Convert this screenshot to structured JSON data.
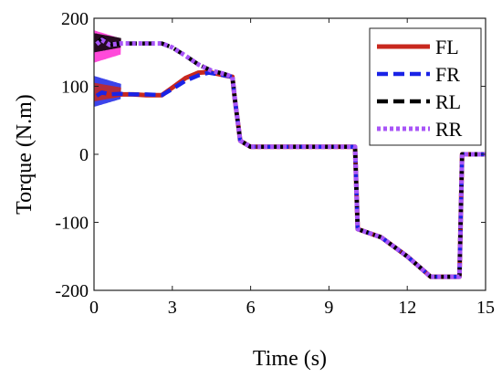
{
  "chart_data": {
    "type": "line",
    "title": "",
    "xlabel": "Time (s)",
    "ylabel": "Torque (N.m)",
    "xlim": [
      0,
      15
    ],
    "ylim": [
      -200,
      200
    ],
    "xticks": [
      0,
      3,
      6,
      9,
      12,
      15
    ],
    "yticks": [
      -200,
      -100,
      0,
      100,
      200
    ],
    "xtick_labels": [
      "0",
      "3",
      "6",
      "9",
      "12",
      "15"
    ],
    "ytick_labels": [
      "-200",
      "-100",
      "0",
      "100",
      "200"
    ],
    "grid": false,
    "legend_position": "top-right",
    "series": [
      {
        "name": "FL",
        "color": "#c8281e",
        "style": "solid",
        "points": [
          [
            0.1,
            85
          ],
          [
            0.3,
            92
          ],
          [
            0.6,
            86
          ],
          [
            1.0,
            88
          ],
          [
            1.5,
            88
          ],
          [
            2.0,
            87
          ],
          [
            2.6,
            87
          ],
          [
            3.0,
            98
          ],
          [
            3.5,
            112
          ],
          [
            4.0,
            120
          ],
          [
            4.4,
            121
          ],
          [
            5.0,
            116
          ],
          [
            5.3,
            114
          ],
          [
            5.4,
            80
          ],
          [
            5.6,
            20
          ],
          [
            6.0,
            11
          ],
          [
            9.0,
            11
          ],
          [
            10.0,
            11
          ],
          [
            10.1,
            -110
          ],
          [
            11.0,
            -122
          ],
          [
            12.0,
            -150
          ],
          [
            12.9,
            -180
          ],
          [
            13.9,
            -180
          ],
          [
            14.0,
            -180
          ],
          [
            14.1,
            0
          ],
          [
            15.0,
            0
          ]
        ]
      },
      {
        "name": "FR",
        "color": "#1a23e6",
        "style": "dashed",
        "points": [
          [
            0.1,
            86
          ],
          [
            0.3,
            91
          ],
          [
            0.6,
            88
          ],
          [
            1.0,
            89
          ],
          [
            1.5,
            88
          ],
          [
            2.0,
            88
          ],
          [
            2.6,
            87
          ],
          [
            3.0,
            96
          ],
          [
            3.5,
            108
          ],
          [
            4.0,
            116
          ],
          [
            4.4,
            120
          ],
          [
            5.0,
            116
          ],
          [
            5.3,
            114
          ],
          [
            5.4,
            80
          ],
          [
            5.6,
            20
          ],
          [
            6.0,
            11
          ],
          [
            9.0,
            11
          ],
          [
            10.0,
            11
          ],
          [
            10.1,
            -110
          ],
          [
            11.0,
            -122
          ],
          [
            12.0,
            -150
          ],
          [
            12.9,
            -180
          ],
          [
            13.9,
            -180
          ],
          [
            14.0,
            -180
          ],
          [
            14.1,
            0
          ],
          [
            15.0,
            0
          ]
        ]
      },
      {
        "name": "RL",
        "color": "#000000",
        "style": "dashed",
        "points": [
          [
            0.1,
            163
          ],
          [
            0.3,
            170
          ],
          [
            0.6,
            162
          ],
          [
            1.0,
            163
          ],
          [
            1.5,
            163
          ],
          [
            2.0,
            163
          ],
          [
            2.6,
            163
          ],
          [
            3.0,
            157
          ],
          [
            3.5,
            145
          ],
          [
            4.0,
            132
          ],
          [
            4.5,
            123
          ],
          [
            5.0,
            118
          ],
          [
            5.3,
            114
          ],
          [
            5.4,
            80
          ],
          [
            5.6,
            20
          ],
          [
            6.0,
            11
          ],
          [
            9.0,
            11
          ],
          [
            10.0,
            11
          ],
          [
            10.1,
            -110
          ],
          [
            11.0,
            -122
          ],
          [
            12.0,
            -150
          ],
          [
            12.9,
            -180
          ],
          [
            13.9,
            -180
          ],
          [
            14.0,
            -180
          ],
          [
            14.1,
            0
          ],
          [
            15.0,
            0
          ]
        ]
      },
      {
        "name": "RR",
        "color": "#a855f7",
        "style": "dotted",
        "points": [
          [
            0.1,
            162
          ],
          [
            0.3,
            168
          ],
          [
            0.6,
            161
          ],
          [
            1.0,
            163
          ],
          [
            1.5,
            163
          ],
          [
            2.0,
            163
          ],
          [
            2.6,
            163
          ],
          [
            3.0,
            157
          ],
          [
            3.5,
            145
          ],
          [
            4.0,
            132
          ],
          [
            4.5,
            123
          ],
          [
            5.0,
            118
          ],
          [
            5.3,
            114
          ],
          [
            5.4,
            80
          ],
          [
            5.6,
            20
          ],
          [
            6.0,
            11
          ],
          [
            9.0,
            11
          ],
          [
            10.0,
            11
          ],
          [
            10.1,
            -110
          ],
          [
            11.0,
            -122
          ],
          [
            12.0,
            -150
          ],
          [
            12.9,
            -180
          ],
          [
            13.9,
            -180
          ],
          [
            14.0,
            -180
          ],
          [
            14.1,
            0
          ],
          [
            15.0,
            0
          ]
        ]
      }
    ],
    "oscillation_regions": [
      {
        "series": "FR",
        "x": [
          0,
          1.0
        ],
        "y": [
          70,
          115
        ],
        "color": "#1a23e6"
      },
      {
        "series": "FL",
        "x": [
          0,
          1.0
        ],
        "y": [
          78,
          105
        ],
        "color": "#c8281e"
      },
      {
        "series": "RR",
        "x": [
          0,
          1.0
        ],
        "y": [
          135,
          182
        ],
        "color": "#ff2ad4"
      },
      {
        "series": "RL",
        "x": [
          0,
          1.0
        ],
        "y": [
          150,
          178
        ],
        "color": "#000000"
      }
    ]
  }
}
